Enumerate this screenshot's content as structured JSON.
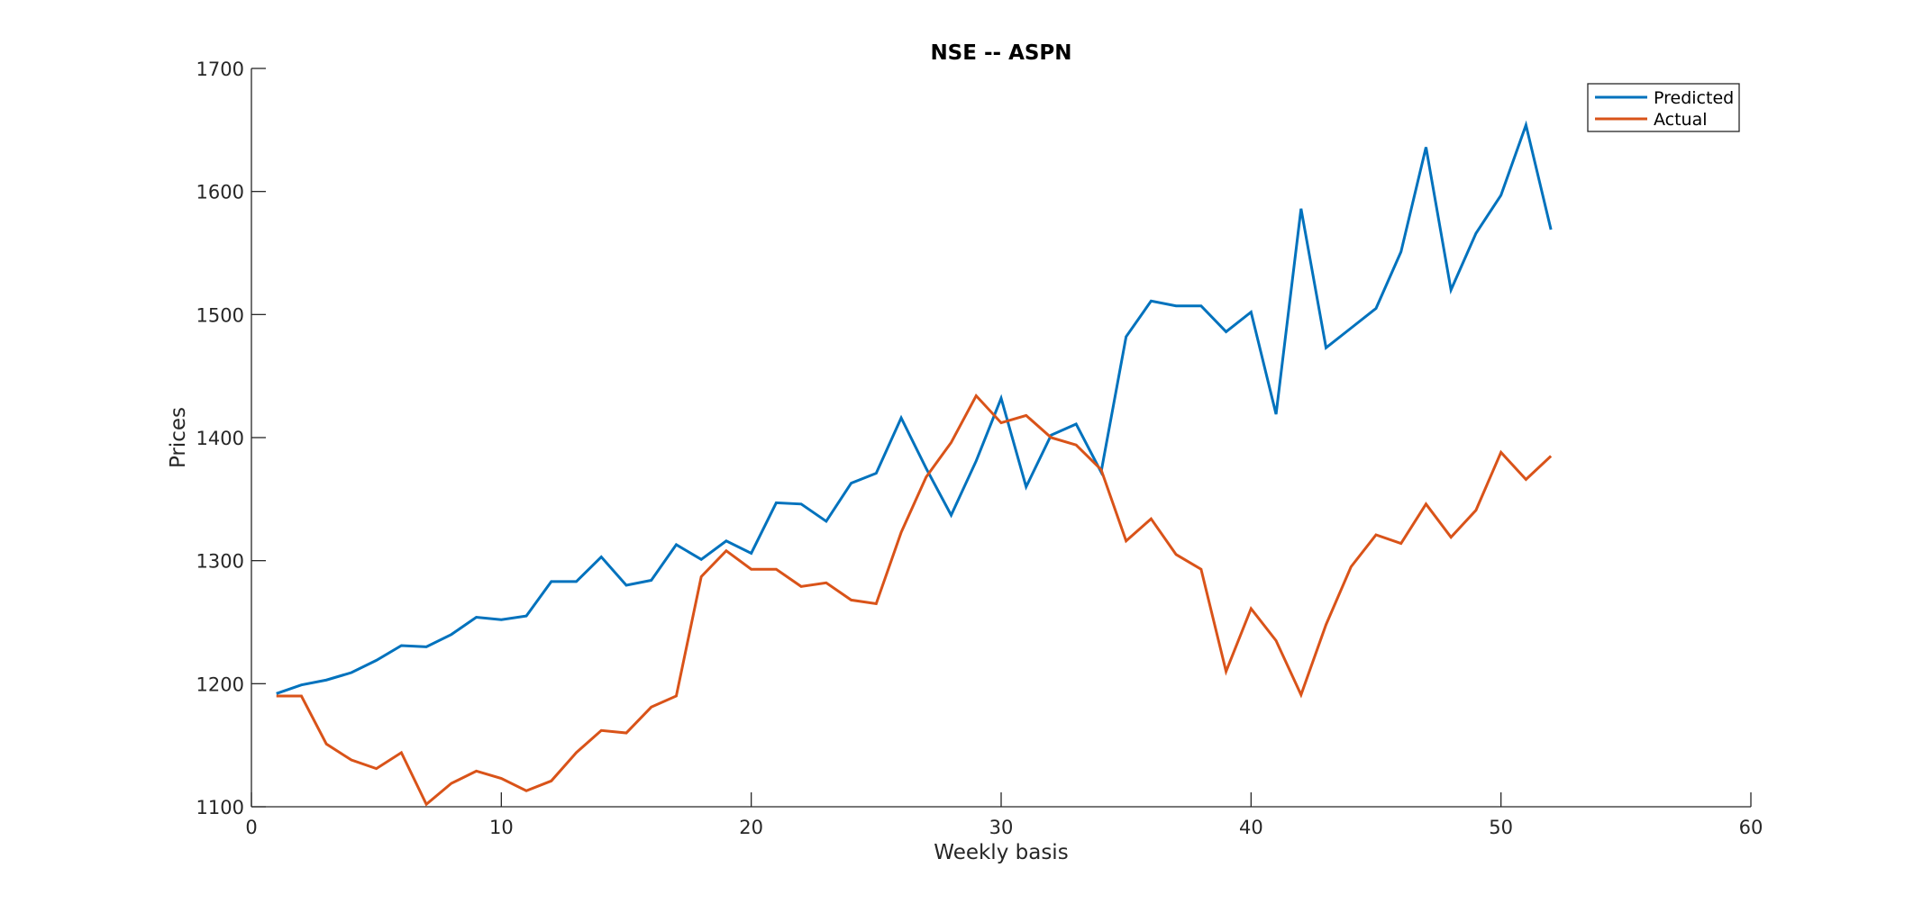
{
  "chart_data": {
    "type": "line",
    "title": "NSE -- ASPN",
    "xlabel": "Weekly basis",
    "ylabel": "Prices",
    "xlim": [
      0,
      60
    ],
    "ylim": [
      1100,
      1700
    ],
    "xticks": [
      0,
      10,
      20,
      30,
      40,
      50,
      60
    ],
    "yticks": [
      1100,
      1200,
      1300,
      1400,
      1500,
      1600,
      1700
    ],
    "grid": false,
    "legend_position": "top-right",
    "x": [
      1,
      2,
      3,
      4,
      5,
      6,
      7,
      8,
      9,
      10,
      11,
      12,
      13,
      14,
      15,
      16,
      17,
      18,
      19,
      20,
      21,
      22,
      23,
      24,
      25,
      26,
      27,
      28,
      29,
      30,
      31,
      32,
      33,
      34,
      35,
      36,
      37,
      38,
      39,
      40,
      41,
      42,
      43,
      44,
      45,
      46,
      47,
      48,
      49,
      50,
      51,
      52
    ],
    "series": [
      {
        "name": "Predicted",
        "color": "#0072BD",
        "values": [
          1192,
          1199,
          1203,
          1209,
          1219,
          1231,
          1230,
          1240,
          1254,
          1252,
          1255,
          1283,
          1283,
          1303,
          1280,
          1284,
          1313,
          1301,
          1316,
          1306,
          1347,
          1346,
          1332,
          1363,
          1371,
          1416,
          1375,
          1337,
          1381,
          1432,
          1360,
          1402,
          1411,
          1372,
          1482,
          1511,
          1507,
          1507,
          1486,
          1502,
          1419,
          1586,
          1473,
          1489,
          1505,
          1551,
          1636,
          1520,
          1566,
          1597,
          1654,
          1569
        ]
      },
      {
        "name": "Actual",
        "color": "#D95319",
        "values": [
          1190,
          1190,
          1151,
          1138,
          1131,
          1144,
          1102,
          1119,
          1129,
          1123,
          1113,
          1121,
          1144,
          1162,
          1160,
          1181,
          1190,
          1287,
          1308,
          1293,
          1293,
          1279,
          1282,
          1268,
          1265,
          1323,
          1368,
          1396,
          1434,
          1412,
          1418,
          1400,
          1394,
          1374,
          1316,
          1334,
          1305,
          1293,
          1210,
          1261,
          1235,
          1191,
          1248,
          1295,
          1321,
          1314,
          1346,
          1319,
          1341,
          1388,
          1366,
          1385
        ]
      }
    ]
  }
}
